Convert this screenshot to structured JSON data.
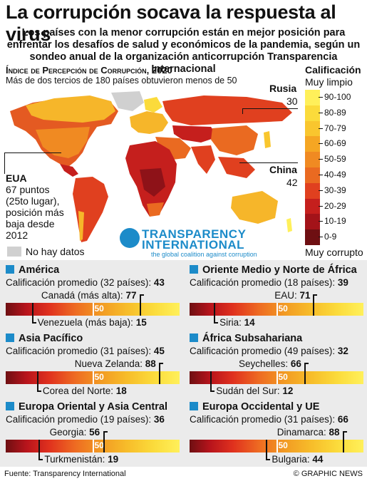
{
  "title": "La corrupción socava la respuesta al virus",
  "subtitle": "Los países con la menor corrupción están en mejor posición para enfrentar los desafíos de salud y económicos de la pandemia, según un sondeo anual de la organización anticorrupción Transparencia Internacional",
  "map": {
    "title": "Índice de Percepción de Corrupción, 2020",
    "subtitle": "Más de dos tercios de 180 países obtuvieron menos de 50",
    "callouts": {
      "russia": {
        "name": "Rusia",
        "score": "30"
      },
      "china": {
        "name": "China",
        "score": "42"
      },
      "usa": {
        "name": "EUA",
        "l1": "67 puntos",
        "l2": "(25to lugar),",
        "l3": "posición más",
        "l4": "baja desde",
        "l5": "2012"
      }
    },
    "no_data": "No hay datos"
  },
  "legend": {
    "title": "Calificación",
    "top": "Muy limpio",
    "bottom": "Muy corrupto",
    "ranges": [
      "90-100",
      "80-89",
      "70-79",
      "60-69",
      "50-59",
      "40-49",
      "30-39",
      "20-29",
      "10-19",
      "0-9"
    ],
    "colors": [
      "#fff05a",
      "#fbdb3b",
      "#f9c62e",
      "#f5a623",
      "#f08a22",
      "#ea6a21",
      "#e0401f",
      "#c51f1d",
      "#a31319",
      "#6e0f12"
    ]
  },
  "logo": {
    "line1": "TRANSPARENCY",
    "line2": "INTERNATIONAL",
    "tagline": "the global coalition against corruption"
  },
  "regions": [
    {
      "name": "América",
      "avg_label": "Calificación promedio (32 países): ",
      "avg": "43",
      "max_label": "Canadá (más alta): ",
      "max": "77",
      "min_label": "Venezuela (más baja): ",
      "min": "15"
    },
    {
      "name": "Oriente Medio y Norte de África",
      "avg_label": "Calificación promedio (18 países): ",
      "avg": "39",
      "max_label": "EAU: ",
      "max": "71",
      "min_label": "Siria: ",
      "min": "14"
    },
    {
      "name": "Asia Pacífico",
      "avg_label": "Calificación promedio (31 países): ",
      "avg": "45",
      "max_label": "Nueva Zelanda: ",
      "max": "88",
      "min_label": "Corea del Norte: ",
      "min": "18"
    },
    {
      "name": "África Subsahariana",
      "avg_label": "Calificación promedio (49 países): ",
      "avg": "32",
      "max_label": "Seychelles: ",
      "max": "66",
      "min_label": "Sudán del Sur: ",
      "min": "12"
    },
    {
      "name": "Europa Oriental y Asia Central",
      "avg_label": "Calificación promedio (19 países): ",
      "avg": "36",
      "max_label": "Georgia: ",
      "max": "56",
      "min_label": "Turkmenistán: ",
      "min": "19"
    },
    {
      "name": "Europa Occidental y UE",
      "avg_label": "Calificación promedio (31 países): ",
      "avg": "66",
      "max_label": "Dinamarca: ",
      "max": "88",
      "min_label": "Bulgaria: ",
      "min": "44"
    }
  ],
  "bar_mid_label": "50",
  "footer": {
    "source": "Fuente: Transparency International",
    "credit": "© GRAPHIC NEWS"
  }
}
